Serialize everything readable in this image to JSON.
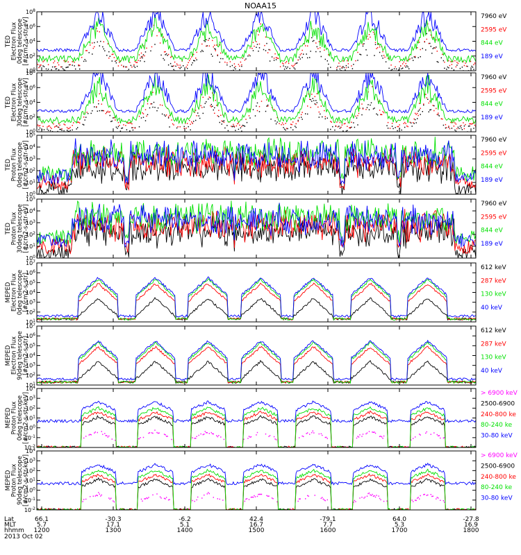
{
  "title": "NOAA15",
  "colors": {
    "black": "#000000",
    "red": "#ff0000",
    "green": "#00e000",
    "blue": "#0000ff",
    "magenta": "#ff00ff"
  },
  "chart_data": [
    {
      "type": "line",
      "ylabel": [
        "TED",
        "Electron Flux",
        "0deg telescope",
        "[#/cm2-s-str-eV]"
      ],
      "ylim_exp": [
        0,
        8
      ],
      "ticks": [
        "10^0",
        "10^2",
        "10^4",
        "10^6",
        "10^8"
      ],
      "legend": [
        {
          "name": "7960 eV",
          "color": "black"
        },
        {
          "name": "2595 eV",
          "color": "red"
        },
        {
          "name": "844 eV",
          "color": "green"
        },
        {
          "name": "189 eV",
          "color": "blue"
        }
      ]
    },
    {
      "type": "line",
      "ylabel": [
        "TED",
        "Electron Flux",
        "30deg telescope",
        "[#/cm2-s-str-eV]"
      ],
      "ylim_exp": [
        0,
        8
      ],
      "ticks": [
        "10^0",
        "10^2",
        "10^4",
        "10^6",
        "10^8"
      ],
      "legend": [
        {
          "name": "7960 eV",
          "color": "black"
        },
        {
          "name": "2595 eV",
          "color": "red"
        },
        {
          "name": "844 eV",
          "color": "green"
        },
        {
          "name": "189 eV",
          "color": "blue"
        }
      ]
    },
    {
      "type": "line",
      "ylabel": [
        "TED",
        "Proton Flux",
        "0deg telescope",
        "[#/cm2-s-str-eV]"
      ],
      "ylim_exp": [
        0,
        5
      ],
      "ticks": [
        "10^0",
        "10^1",
        "10^2",
        "10^3",
        "10^4",
        "10^5"
      ],
      "legend": [
        {
          "name": "7960 eV",
          "color": "black"
        },
        {
          "name": "2595 eV",
          "color": "red"
        },
        {
          "name": "844 eV",
          "color": "green"
        },
        {
          "name": "189 eV",
          "color": "blue"
        }
      ]
    },
    {
      "type": "line",
      "ylabel": [
        "TED",
        "Proton Flux",
        "30deg telescope",
        "[#/cm2-s-str-eV]"
      ],
      "ylim_exp": [
        0,
        5
      ],
      "ticks": [
        "10^0",
        "10^1",
        "10^2",
        "10^3",
        "10^4",
        "10^5"
      ],
      "legend": [
        {
          "name": "7960 eV",
          "color": "black"
        },
        {
          "name": "2595 eV",
          "color": "red"
        },
        {
          "name": "844 eV",
          "color": "green"
        },
        {
          "name": "189 eV",
          "color": "blue"
        }
      ]
    },
    {
      "type": "line",
      "ylabel": [
        "MEPED",
        "Electron Flux",
        "0deg telescope",
        "[#/cm2-s-str]"
      ],
      "ylim_exp": [
        1,
        7
      ],
      "ticks": [
        "10^1",
        "10^2",
        "10^3",
        "10^4",
        "10^5",
        "10^6",
        "10^7"
      ],
      "legend": [
        {
          "name": "612 keV",
          "color": "black"
        },
        {
          "name": "287 keV",
          "color": "red"
        },
        {
          "name": "130 keV",
          "color": "green"
        },
        {
          "name": "40 keV",
          "color": "blue"
        }
      ]
    },
    {
      "type": "line",
      "ylabel": [
        "MEPED",
        "Electron Flux",
        "90deg telescope",
        "[#/cm2-s-str]"
      ],
      "ylim_exp": [
        1,
        7
      ],
      "ticks": [
        "10^1",
        "10^2",
        "10^3",
        "10^4",
        "10^5",
        "10^6",
        "10^7"
      ],
      "legend": [
        {
          "name": "612 keV",
          "color": "black"
        },
        {
          "name": "287 keV",
          "color": "red"
        },
        {
          "name": "130 keV",
          "color": "green"
        },
        {
          "name": "40 keV",
          "color": "blue"
        }
      ]
    },
    {
      "type": "line",
      "ylabel": [
        "MEPED",
        "Proton Flux",
        "0deg telescope",
        "[#/cm2-s-str-keV]"
      ],
      "ylim_exp": [
        -2,
        4
      ],
      "ticks": [
        "10^-2",
        "10^-1",
        "10^0",
        "10^1",
        "10^2",
        "10^3",
        "10^4"
      ],
      "legend": [
        {
          "name": "> 6900 keV",
          "color": "magenta"
        },
        {
          "name": "2500-6900",
          "color": "black"
        },
        {
          "name": "240-800 ke",
          "color": "red"
        },
        {
          "name": "80-240 ke",
          "color": "green"
        },
        {
          "name": "30-80 keV",
          "color": "blue"
        }
      ]
    },
    {
      "type": "line",
      "ylabel": [
        "MEPED",
        "Proton Flux",
        "90deg telescope",
        "[#/cm2-s-str-keV]"
      ],
      "ylim_exp": [
        -2,
        4
      ],
      "ticks": [
        "10^-2",
        "10^-1",
        "10^0",
        "10^1",
        "10^2",
        "10^3",
        "10^4"
      ],
      "legend": [
        {
          "name": "> 6900 keV",
          "color": "magenta"
        },
        {
          "name": "2500-6900",
          "color": "black"
        },
        {
          "name": "240-800 ke",
          "color": "red"
        },
        {
          "name": "80-240 ke",
          "color": "green"
        },
        {
          "name": "30-80 keV",
          "color": "blue"
        }
      ]
    }
  ],
  "xaxis": {
    "row_labels": [
      "Lat",
      "MLT",
      "hhmm"
    ],
    "date": "2013 Oct 02",
    "columns": [
      {
        "lat": "66.1",
        "mlt": "5.7",
        "hhmm": "1200"
      },
      {
        "lat": "-30.3",
        "mlt": "17.1",
        "hhmm": "1300"
      },
      {
        "lat": "-6.2",
        "mlt": "5.1",
        "hhmm": "1400"
      },
      {
        "lat": "42.4",
        "mlt": "16.7",
        "hhmm": "1500"
      },
      {
        "lat": "-79.1",
        "mlt": "7.7",
        "hhmm": "1600"
      },
      {
        "lat": "64.0",
        "mlt": "5.3",
        "hhmm": "1700"
      },
      {
        "lat": "-27.8",
        "mlt": "16.9",
        "hhmm": "1800"
      }
    ]
  }
}
